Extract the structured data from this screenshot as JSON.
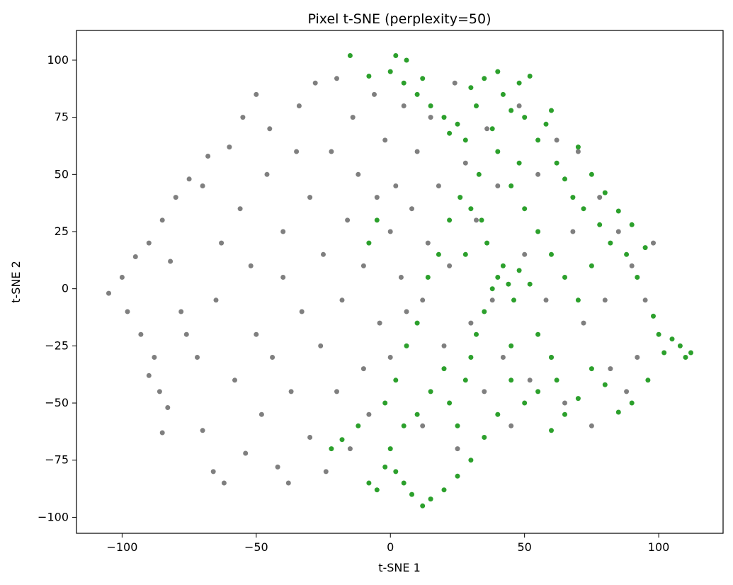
{
  "chart_data": {
    "type": "scatter",
    "title": "Pixel t-SNE (perplexity=50)",
    "xlabel": "t-SNE 1",
    "ylabel": "t-SNE 2",
    "xlim": [
      -117,
      124
    ],
    "ylim": [
      -107,
      113
    ],
    "xticks": [
      -100,
      -50,
      0,
      50,
      100
    ],
    "yticks": [
      -100,
      -75,
      -50,
      -25,
      0,
      25,
      50,
      75,
      100
    ],
    "xtick_labels": [
      "−100",
      "−50",
      "0",
      "50",
      "100"
    ],
    "ytick_labels": [
      "−100",
      "−75",
      "−50",
      "−25",
      "0",
      "25",
      "50",
      "75",
      "100"
    ],
    "grid": false,
    "legend": "none",
    "series": [
      {
        "color": "#7f7f7f",
        "values": [
          [
            -105,
            -2
          ],
          [
            -100,
            5
          ],
          [
            -98,
            -10
          ],
          [
            -95,
            14
          ],
          [
            -93,
            -20
          ],
          [
            -90,
            -38
          ],
          [
            -90,
            20
          ],
          [
            -88,
            -30
          ],
          [
            -86,
            -45
          ],
          [
            -85,
            -63
          ],
          [
            -85,
            30
          ],
          [
            -83,
            -52
          ],
          [
            -82,
            12
          ],
          [
            -80,
            40
          ],
          [
            -78,
            -10
          ],
          [
            -76,
            -20
          ],
          [
            -75,
            48
          ],
          [
            -72,
            -30
          ],
          [
            -70,
            45
          ],
          [
            -70,
            -62
          ],
          [
            -68,
            58
          ],
          [
            -66,
            -80
          ],
          [
            -65,
            -5
          ],
          [
            -63,
            20
          ],
          [
            -62,
            -85
          ],
          [
            -60,
            62
          ],
          [
            -58,
            -40
          ],
          [
            -56,
            35
          ],
          [
            -55,
            75
          ],
          [
            -54,
            -72
          ],
          [
            -52,
            10
          ],
          [
            -50,
            85
          ],
          [
            -50,
            -20
          ],
          [
            -48,
            -55
          ],
          [
            -46,
            50
          ],
          [
            -45,
            70
          ],
          [
            -44,
            -30
          ],
          [
            -42,
            -78
          ],
          [
            -40,
            25
          ],
          [
            -40,
            5
          ],
          [
            -38,
            -85
          ],
          [
            -37,
            -45
          ],
          [
            -35,
            60
          ],
          [
            -34,
            80
          ],
          [
            -33,
            -10
          ],
          [
            -30,
            -65
          ],
          [
            -30,
            40
          ],
          [
            -28,
            90
          ],
          [
            -26,
            -25
          ],
          [
            -25,
            15
          ],
          [
            -24,
            -80
          ],
          [
            -22,
            60
          ],
          [
            -20,
            -45
          ],
          [
            -20,
            92
          ],
          [
            -18,
            -5
          ],
          [
            -16,
            30
          ],
          [
            -15,
            -70
          ],
          [
            -14,
            75
          ],
          [
            -12,
            50
          ],
          [
            -10,
            -35
          ],
          [
            -10,
            10
          ],
          [
            -8,
            -55
          ],
          [
            -6,
            85
          ],
          [
            -5,
            40
          ],
          [
            -4,
            -15
          ],
          [
            -2,
            65
          ],
          [
            0,
            25
          ],
          [
            0,
            -30
          ],
          [
            2,
            45
          ],
          [
            4,
            5
          ],
          [
            5,
            80
          ],
          [
            6,
            -10
          ],
          [
            8,
            35
          ],
          [
            10,
            60
          ],
          [
            12,
            -5
          ],
          [
            12,
            -60
          ],
          [
            14,
            20
          ],
          [
            15,
            75
          ],
          [
            18,
            45
          ],
          [
            20,
            -25
          ],
          [
            22,
            10
          ],
          [
            24,
            90
          ],
          [
            25,
            -70
          ],
          [
            28,
            55
          ],
          [
            30,
            -15
          ],
          [
            32,
            30
          ],
          [
            35,
            -45
          ],
          [
            36,
            70
          ],
          [
            38,
            -5
          ],
          [
            40,
            45
          ],
          [
            42,
            -30
          ],
          [
            45,
            -60
          ],
          [
            48,
            80
          ],
          [
            50,
            15
          ],
          [
            52,
            -40
          ],
          [
            55,
            50
          ],
          [
            58,
            -5
          ],
          [
            60,
            -30
          ],
          [
            62,
            65
          ],
          [
            65,
            -50
          ],
          [
            68,
            25
          ],
          [
            70,
            60
          ],
          [
            72,
            -15
          ],
          [
            75,
            -60
          ],
          [
            78,
            40
          ],
          [
            80,
            -5
          ],
          [
            82,
            -35
          ],
          [
            85,
            25
          ],
          [
            88,
            -45
          ],
          [
            90,
            10
          ],
          [
            92,
            -30
          ],
          [
            95,
            -5
          ],
          [
            98,
            20
          ]
        ]
      },
      {
        "color": "#2ca02c",
        "values": [
          [
            -15,
            102
          ],
          [
            -8,
            93
          ],
          [
            0,
            95
          ],
          [
            2,
            102
          ],
          [
            5,
            90
          ],
          [
            6,
            100
          ],
          [
            10,
            85
          ],
          [
            12,
            92
          ],
          [
            15,
            80
          ],
          [
            20,
            75
          ],
          [
            22,
            68
          ],
          [
            25,
            72
          ],
          [
            28,
            65
          ],
          [
            30,
            88
          ],
          [
            32,
            80
          ],
          [
            35,
            92
          ],
          [
            38,
            70
          ],
          [
            40,
            95
          ],
          [
            42,
            85
          ],
          [
            45,
            78
          ],
          [
            48,
            90
          ],
          [
            50,
            75
          ],
          [
            52,
            93
          ],
          [
            55,
            65
          ],
          [
            58,
            72
          ],
          [
            60,
            78
          ],
          [
            62,
            55
          ],
          [
            65,
            48
          ],
          [
            68,
            40
          ],
          [
            70,
            62
          ],
          [
            72,
            35
          ],
          [
            75,
            50
          ],
          [
            78,
            28
          ],
          [
            80,
            42
          ],
          [
            82,
            20
          ],
          [
            85,
            34
          ],
          [
            88,
            15
          ],
          [
            90,
            28
          ],
          [
            92,
            5
          ],
          [
            95,
            18
          ],
          [
            98,
            -12
          ],
          [
            100,
            -20
          ],
          [
            102,
            -28
          ],
          [
            105,
            -22
          ],
          [
            108,
            -25
          ],
          [
            110,
            -30
          ],
          [
            112,
            -28
          ],
          [
            96,
            -40
          ],
          [
            90,
            -50
          ],
          [
            85,
            -54
          ],
          [
            80,
            -42
          ],
          [
            75,
            -35
          ],
          [
            70,
            -48
          ],
          [
            65,
            -55
          ],
          [
            60,
            -62
          ],
          [
            55,
            -45
          ],
          [
            50,
            -50
          ],
          [
            45,
            -40
          ],
          [
            40,
            -55
          ],
          [
            35,
            -65
          ],
          [
            30,
            -75
          ],
          [
            25,
            -82
          ],
          [
            20,
            -88
          ],
          [
            15,
            -92
          ],
          [
            12,
            -95
          ],
          [
            8,
            -90
          ],
          [
            5,
            -85
          ],
          [
            2,
            -80
          ],
          [
            -2,
            -78
          ],
          [
            -5,
            -88
          ],
          [
            -8,
            -85
          ],
          [
            0,
            -70
          ],
          [
            5,
            -60
          ],
          [
            10,
            -55
          ],
          [
            15,
            -45
          ],
          [
            20,
            -35
          ],
          [
            22,
            -50
          ],
          [
            25,
            -60
          ],
          [
            28,
            -40
          ],
          [
            30,
            -30
          ],
          [
            32,
            -20
          ],
          [
            35,
            -10
          ],
          [
            38,
            0
          ],
          [
            40,
            5
          ],
          [
            42,
            10
          ],
          [
            44,
            2
          ],
          [
            46,
            -5
          ],
          [
            48,
            8
          ],
          [
            36,
            20
          ],
          [
            34,
            30
          ],
          [
            30,
            35
          ],
          [
            26,
            40
          ],
          [
            22,
            30
          ],
          [
            18,
            15
          ],
          [
            14,
            5
          ],
          [
            10,
            -15
          ],
          [
            6,
            -25
          ],
          [
            2,
            -40
          ],
          [
            -2,
            -50
          ],
          [
            -5,
            30
          ],
          [
            -8,
            20
          ],
          [
            -12,
            -60
          ],
          [
            -18,
            -66
          ],
          [
            -22,
            -70
          ],
          [
            45,
            45
          ],
          [
            50,
            35
          ],
          [
            55,
            25
          ],
          [
            60,
            15
          ],
          [
            65,
            5
          ],
          [
            70,
            -5
          ],
          [
            75,
            10
          ],
          [
            55,
            -20
          ],
          [
            60,
            -30
          ],
          [
            45,
            -25
          ],
          [
            40,
            60
          ],
          [
            48,
            55
          ],
          [
            33,
            50
          ],
          [
            28,
            15
          ],
          [
            52,
            2
          ],
          [
            62,
            -40
          ]
        ]
      }
    ]
  }
}
